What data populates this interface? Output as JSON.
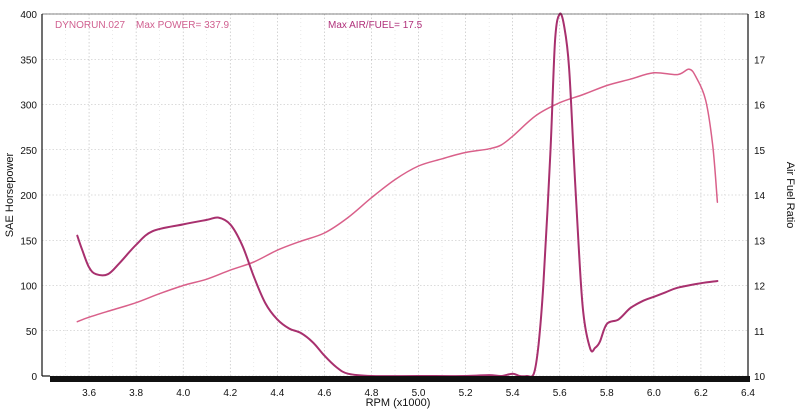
{
  "chart_data": {
    "type": "line",
    "annotations": {
      "run": "DYNORUN.027",
      "max_power": "Max POWER= 337.9",
      "max_afr": "Max AIR/FUEL= 17.5"
    },
    "xlabel": "RPM (x1000)",
    "ylabel_left": "SAE Horsepower",
    "ylabel_right": "Air Fuel Ratio",
    "xlim": [
      3.4,
      6.4
    ],
    "ylim_left": [
      0,
      400
    ],
    "ylim_right": [
      10,
      18
    ],
    "xticks": [
      "3.6",
      "3.8",
      "4.0",
      "4.2",
      "4.4",
      "4.6",
      "4.8",
      "5.0",
      "5.2",
      "5.4",
      "5.6",
      "5.8",
      "6.0",
      "6.2",
      "6.4"
    ],
    "yticks_left": [
      "0",
      "50",
      "100",
      "150",
      "200",
      "250",
      "300",
      "350",
      "400"
    ],
    "yticks_right": [
      "10",
      "11",
      "12",
      "13",
      "14",
      "15",
      "16",
      "17",
      "18"
    ],
    "grid": true,
    "colors": {
      "power": "#d9608a",
      "afr": "#a8306e",
      "annotation": "#d06090",
      "annotation_afr": "#b0307a",
      "axis": "#111111"
    },
    "series": [
      {
        "name": "SAE Horsepower",
        "axis": "left",
        "x": [
          3.55,
          3.6,
          3.7,
          3.8,
          3.9,
          4.0,
          4.1,
          4.2,
          4.3,
          4.4,
          4.5,
          4.6,
          4.7,
          4.8,
          4.9,
          5.0,
          5.1,
          5.2,
          5.3,
          5.35,
          5.4,
          5.5,
          5.6,
          5.7,
          5.8,
          5.9,
          6.0,
          6.1,
          6.15,
          6.18,
          6.22,
          6.25,
          6.27
        ],
        "y": [
          60,
          65,
          73,
          81,
          91,
          100,
          107,
          117,
          126,
          139,
          149,
          158,
          175,
          197,
          217,
          232,
          240,
          247,
          251,
          255,
          265,
          288,
          302,
          311,
          321,
          328,
          335,
          333,
          339,
          330,
          305,
          255,
          192
        ]
      },
      {
        "name": "Air Fuel Ratio",
        "axis": "right",
        "x": [
          3.55,
          3.57,
          3.6,
          3.63,
          3.68,
          3.73,
          3.8,
          3.87,
          4.0,
          4.1,
          4.15,
          4.2,
          4.25,
          4.3,
          4.35,
          4.4,
          4.45,
          4.5,
          4.55,
          4.6,
          4.65,
          4.7,
          4.8,
          5.0,
          5.2,
          5.3,
          5.35,
          5.4,
          5.43,
          5.46,
          5.49,
          5.51,
          5.53,
          5.56,
          5.58,
          5.6,
          5.62,
          5.64,
          5.66,
          5.68,
          5.7,
          5.73,
          5.75,
          5.77,
          5.8,
          5.85,
          5.9,
          5.95,
          6.0,
          6.05,
          6.1,
          6.2,
          6.27
        ],
        "y": [
          13.1,
          12.8,
          12.4,
          12.25,
          12.25,
          12.5,
          12.9,
          13.2,
          13.35,
          13.45,
          13.5,
          13.35,
          12.9,
          12.2,
          11.6,
          11.25,
          11.05,
          10.95,
          10.75,
          10.45,
          10.2,
          10.05,
          10,
          10,
          10,
          10.02,
          10,
          10.05,
          10,
          10,
          10.05,
          10.7,
          12.0,
          14.9,
          17.4,
          18.0,
          17.7,
          16.8,
          14.8,
          12.9,
          11.4,
          10.6,
          10.62,
          10.75,
          11.15,
          11.25,
          11.5,
          11.65,
          11.75,
          11.85,
          11.95,
          12.05,
          12.1
        ]
      }
    ]
  }
}
